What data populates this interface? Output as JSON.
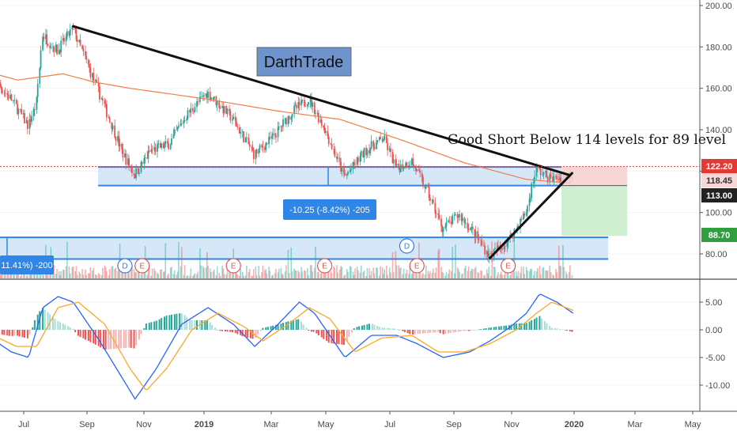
{
  "brand_label": "DarthTrade",
  "annotation": "Good Short Below 114 levels for 89 level",
  "measure_primary": "-10.25 (-8.42%) -205",
  "measure_secondary": "11.41%) -200",
  "colors": {
    "up": "#26a69a",
    "down": "#ef5350",
    "sma": "#f57c4a",
    "macd": "#2962ff",
    "signal": "#ffa726",
    "zone_fill": "#cfe3f7",
    "zone_border": "#2f86e6",
    "current_price": "#e53935",
    "profit_zone": "#c8ecc8",
    "loss_zone": "#f7cfcf",
    "brand_box": "#6f93cc"
  },
  "chart_data": {
    "type": "candlestick",
    "price_axis": {
      "range": [
        64,
        203
      ],
      "ticks": [
        "200.00",
        "180.00",
        "160.00",
        "140.00",
        "120.00",
        "100.00",
        "80.00"
      ],
      "tick_values": [
        200,
        180,
        160,
        140,
        120,
        100,
        80
      ]
    },
    "macd_axis": {
      "range": [
        -14,
        8
      ],
      "ticks": [
        "5.00",
        "0.00",
        "-5.00",
        "-10.00"
      ],
      "tick_values": [
        5,
        0,
        -5,
        -10
      ]
    },
    "time_axis": {
      "labels": [
        "Jul",
        "Sep",
        "Nov",
        "2019",
        "Mar",
        "May",
        "Jul",
        "Sep",
        "Nov",
        "2020",
        "Mar",
        "May"
      ],
      "bold": [
        "2019",
        "2020"
      ]
    },
    "price_tags": [
      {
        "label": "122.20",
        "value": 122.2,
        "color": "#e53935",
        "text_color": "#ffffff"
      },
      {
        "label": "118.45",
        "value": 118.45,
        "color": "#f8d7d7",
        "text_color": "#333333"
      },
      {
        "label": "113.00",
        "value": 113.0,
        "color": "#222222",
        "text_color": "#ffffff"
      },
      {
        "label": "88.70",
        "value": 88.7,
        "color": "#2e9e3e",
        "text_color": "#ffffff"
      }
    ],
    "zones": [
      {
        "name": "resistance-zone",
        "low": 113,
        "high": 122
      },
      {
        "name": "support-zone",
        "low": 77.5,
        "high": 88
      }
    ],
    "trendlines": [
      {
        "name": "descending-trendline",
        "from": {
          "date": "2018-08-25",
          "price": 190
        },
        "to": {
          "date": "2019-12-28",
          "price": 118
        }
      },
      {
        "name": "ascending-trendline",
        "from": {
          "date": "2019-10-10",
          "price": 78
        },
        "to": {
          "date": "2019-12-30",
          "price": 119
        }
      }
    ],
    "position": {
      "entry": 113.0,
      "target": 88.7,
      "stop": 122.2
    },
    "events": [
      {
        "type": "D",
        "date": "2018-10-15"
      },
      {
        "type": "E",
        "date": "2018-11-01"
      },
      {
        "type": "E",
        "date": "2019-01-30"
      },
      {
        "type": "E",
        "date": "2019-04-30"
      },
      {
        "type": "D",
        "date": "2019-07-20"
      },
      {
        "type": "E",
        "date": "2019-07-30"
      },
      {
        "type": "E",
        "date": "2019-10-28"
      }
    ],
    "price_path": [
      {
        "date": "2018-06-01",
        "price": 168
      },
      {
        "date": "2018-06-25",
        "price": 155
      },
      {
        "date": "2018-07-12",
        "price": 142
      },
      {
        "date": "2018-07-20",
        "price": 152
      },
      {
        "date": "2018-07-26",
        "price": 186
      },
      {
        "date": "2018-08-10",
        "price": 178
      },
      {
        "date": "2018-08-25",
        "price": 189
      },
      {
        "date": "2018-09-10",
        "price": 170
      },
      {
        "date": "2018-09-28",
        "price": 148
      },
      {
        "date": "2018-10-12",
        "price": 130
      },
      {
        "date": "2018-10-25",
        "price": 118
      },
      {
        "date": "2018-11-10",
        "price": 130
      },
      {
        "date": "2018-11-28",
        "price": 133
      },
      {
        "date": "2018-12-15",
        "price": 147
      },
      {
        "date": "2019-01-05",
        "price": 158
      },
      {
        "date": "2019-01-30",
        "price": 145
      },
      {
        "date": "2019-02-20",
        "price": 128
      },
      {
        "date": "2019-03-10",
        "price": 136
      },
      {
        "date": "2019-03-30",
        "price": 149
      },
      {
        "date": "2019-04-15",
        "price": 155
      },
      {
        "date": "2019-05-01",
        "price": 140
      },
      {
        "date": "2019-05-20",
        "price": 117
      },
      {
        "date": "2019-06-10",
        "price": 130
      },
      {
        "date": "2019-06-28",
        "price": 136
      },
      {
        "date": "2019-07-10",
        "price": 121
      },
      {
        "date": "2019-07-25",
        "price": 125
      },
      {
        "date": "2019-08-10",
        "price": 110
      },
      {
        "date": "2019-08-25",
        "price": 92
      },
      {
        "date": "2019-09-10",
        "price": 99
      },
      {
        "date": "2019-09-25",
        "price": 90
      },
      {
        "date": "2019-10-10",
        "price": 79
      },
      {
        "date": "2019-10-28",
        "price": 86
      },
      {
        "date": "2019-11-15",
        "price": 100
      },
      {
        "date": "2019-11-25",
        "price": 121
      },
      {
        "date": "2019-12-10",
        "price": 116
      },
      {
        "date": "2019-12-20",
        "price": 117
      },
      {
        "date": "2019-12-31",
        "price": 118.45
      }
    ],
    "sma_path": [
      {
        "date": "2018-06-01",
        "price": 168
      },
      {
        "date": "2018-07-01",
        "price": 164
      },
      {
        "date": "2018-08-15",
        "price": 167
      },
      {
        "date": "2018-09-15",
        "price": 163
      },
      {
        "date": "2018-10-20",
        "price": 160
      },
      {
        "date": "2019-01-01",
        "price": 155
      },
      {
        "date": "2019-03-15",
        "price": 149
      },
      {
        "date": "2019-05-15",
        "price": 145
      },
      {
        "date": "2019-07-15",
        "price": 135
      },
      {
        "date": "2019-09-15",
        "price": 124
      },
      {
        "date": "2019-11-15",
        "price": 116
      },
      {
        "date": "2019-12-31",
        "price": 114
      }
    ],
    "macd_path": [
      {
        "date": "2018-06-01",
        "macd": -1
      },
      {
        "date": "2018-06-25",
        "macd": -4
      },
      {
        "date": "2018-07-12",
        "macd": -5
      },
      {
        "date": "2018-07-26",
        "macd": 4
      },
      {
        "date": "2018-08-10",
        "macd": 6
      },
      {
        "date": "2018-08-25",
        "macd": 5
      },
      {
        "date": "2018-09-20",
        "macd": -2
      },
      {
        "date": "2018-10-10",
        "macd": -8
      },
      {
        "date": "2018-10-25",
        "macd": -12.5
      },
      {
        "date": "2018-11-15",
        "macd": -7
      },
      {
        "date": "2018-12-10",
        "macd": 1
      },
      {
        "date": "2019-01-05",
        "macd": 4
      },
      {
        "date": "2019-01-30",
        "macd": 1
      },
      {
        "date": "2019-02-20",
        "macd": -3
      },
      {
        "date": "2019-03-15",
        "macd": 1
      },
      {
        "date": "2019-04-05",
        "macd": 5
      },
      {
        "date": "2019-04-20",
        "macd": 3
      },
      {
        "date": "2019-05-20",
        "macd": -5
      },
      {
        "date": "2019-06-15",
        "macd": -1
      },
      {
        "date": "2019-07-10",
        "macd": -1
      },
      {
        "date": "2019-07-30",
        "macd": -2.5
      },
      {
        "date": "2019-08-25",
        "macd": -5
      },
      {
        "date": "2019-09-20",
        "macd": -4
      },
      {
        "date": "2019-10-10",
        "macd": -2
      },
      {
        "date": "2019-10-30",
        "macd": 0.5
      },
      {
        "date": "2019-11-15",
        "macd": 3
      },
      {
        "date": "2019-11-28",
        "macd": 6.5
      },
      {
        "date": "2019-12-15",
        "macd": 5
      },
      {
        "date": "2019-12-31",
        "macd": 3
      }
    ],
    "signal_path": [
      {
        "date": "2018-06-01",
        "macd": -0.5
      },
      {
        "date": "2018-06-30",
        "macd": -3
      },
      {
        "date": "2018-07-20",
        "macd": -3
      },
      {
        "date": "2018-08-10",
        "macd": 4
      },
      {
        "date": "2018-08-30",
        "macd": 5
      },
      {
        "date": "2018-09-25",
        "macd": 1
      },
      {
        "date": "2018-10-20",
        "macd": -7
      },
      {
        "date": "2018-11-05",
        "macd": -11
      },
      {
        "date": "2018-11-25",
        "macd": -7
      },
      {
        "date": "2018-12-20",
        "macd": 0
      },
      {
        "date": "2019-01-15",
        "macd": 3
      },
      {
        "date": "2019-02-10",
        "macd": 0.5
      },
      {
        "date": "2019-02-28",
        "macd": -2
      },
      {
        "date": "2019-03-25",
        "macd": 1
      },
      {
        "date": "2019-04-15",
        "macd": 4
      },
      {
        "date": "2019-05-05",
        "macd": 2
      },
      {
        "date": "2019-05-30",
        "macd": -4
      },
      {
        "date": "2019-06-25",
        "macd": -1.5
      },
      {
        "date": "2019-07-25",
        "macd": -1
      },
      {
        "date": "2019-08-20",
        "macd": -4
      },
      {
        "date": "2019-09-15",
        "macd": -4
      },
      {
        "date": "2019-10-10",
        "macd": -2.5
      },
      {
        "date": "2019-11-05",
        "macd": 0
      },
      {
        "date": "2019-11-25",
        "macd": 3
      },
      {
        "date": "2019-12-10",
        "macd": 5
      },
      {
        "date": "2019-12-31",
        "macd": 3.5
      }
    ]
  }
}
